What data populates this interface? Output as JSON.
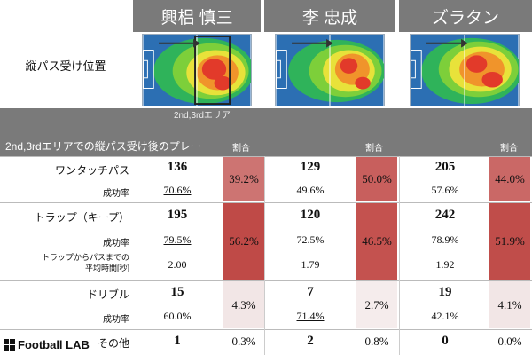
{
  "players": [
    {
      "name": "興梠 慎三",
      "one_touch": {
        "count": "136",
        "success": "70.6%",
        "ratio": "39.2%"
      },
      "trap": {
        "count": "195",
        "success": "79.5%",
        "time": "2.00",
        "ratio": "56.2%"
      },
      "dribble": {
        "count": "15",
        "success": "60.0%",
        "ratio": "4.3%"
      },
      "other": {
        "count": "1",
        "ratio": "0.3%"
      }
    },
    {
      "name": "李 忠成",
      "one_touch": {
        "count": "129",
        "success": "49.6%",
        "ratio": "50.0%"
      },
      "trap": {
        "count": "120",
        "success": "72.5%",
        "time": "1.79",
        "ratio": "46.5%"
      },
      "dribble": {
        "count": "7",
        "success": "71.4%",
        "ratio": "2.7%"
      },
      "other": {
        "count": "2",
        "ratio": "0.8%"
      }
    },
    {
      "name": "ズラタン",
      "one_touch": {
        "count": "205",
        "success": "57.6%",
        "ratio": "44.0%"
      },
      "trap": {
        "count": "242",
        "success": "78.9%",
        "time": "1.92",
        "ratio": "51.9%"
      },
      "dribble": {
        "count": "19",
        "success": "42.1%",
        "ratio": "4.1%"
      },
      "other": {
        "count": "0",
        "ratio": "0.0%"
      }
    }
  ],
  "labels": {
    "position": "縦パス受け位置",
    "zone_note": "2nd,3rdエリア",
    "section_title": "2nd,3rdエリアでの縦パス受け後のプレー",
    "ratio_header": "割合",
    "one_touch": "ワンタッチパス",
    "success_rate": "成功率",
    "trap": "トラップ（キープ）",
    "time_line1": "トラップからパスまでの",
    "time_line2": "平均時間[秒]",
    "dribble": "ドリブル",
    "other": "その他"
  },
  "logo": {
    "text": "Football LAB"
  },
  "colors": {
    "ratio_strong": "#c0504d",
    "ratio_mid": "#cd7472",
    "ratio_light": "#f2e6e6",
    "header": "#7a7a7a"
  }
}
